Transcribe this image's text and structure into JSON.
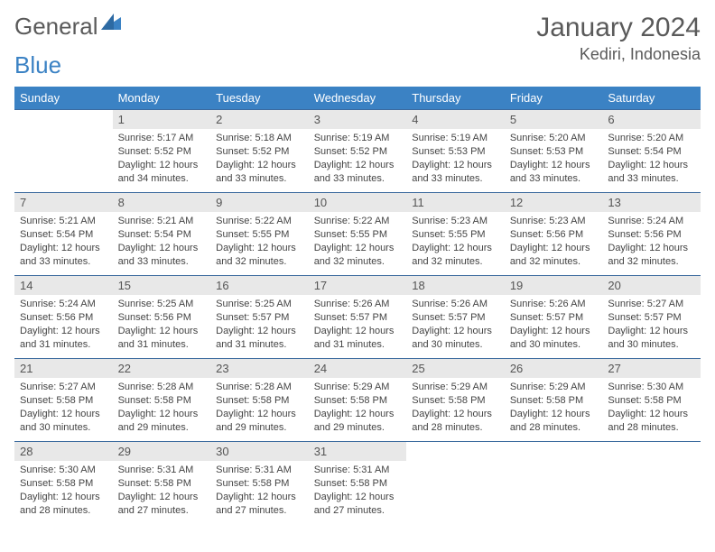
{
  "logo": {
    "text1": "General",
    "text2": "Blue"
  },
  "header": {
    "monthTitle": "January 2024",
    "location": "Kediri, Indonesia"
  },
  "colors": {
    "accent": "#3b82c4",
    "headerRow": "#3b82c4",
    "dayNumBg": "#e8e8e8",
    "rowBorder": "#3b6a9e",
    "text": "#444444"
  },
  "weekdays": [
    "Sunday",
    "Monday",
    "Tuesday",
    "Wednesday",
    "Thursday",
    "Friday",
    "Saturday"
  ],
  "startOffset": 1,
  "days": [
    {
      "n": 1,
      "sr": "5:17 AM",
      "ss": "5:52 PM",
      "dl": "12 hours and 34 minutes."
    },
    {
      "n": 2,
      "sr": "5:18 AM",
      "ss": "5:52 PM",
      "dl": "12 hours and 33 minutes."
    },
    {
      "n": 3,
      "sr": "5:19 AM",
      "ss": "5:52 PM",
      "dl": "12 hours and 33 minutes."
    },
    {
      "n": 4,
      "sr": "5:19 AM",
      "ss": "5:53 PM",
      "dl": "12 hours and 33 minutes."
    },
    {
      "n": 5,
      "sr": "5:20 AM",
      "ss": "5:53 PM",
      "dl": "12 hours and 33 minutes."
    },
    {
      "n": 6,
      "sr": "5:20 AM",
      "ss": "5:54 PM",
      "dl": "12 hours and 33 minutes."
    },
    {
      "n": 7,
      "sr": "5:21 AM",
      "ss": "5:54 PM",
      "dl": "12 hours and 33 minutes."
    },
    {
      "n": 8,
      "sr": "5:21 AM",
      "ss": "5:54 PM",
      "dl": "12 hours and 33 minutes."
    },
    {
      "n": 9,
      "sr": "5:22 AM",
      "ss": "5:55 PM",
      "dl": "12 hours and 32 minutes."
    },
    {
      "n": 10,
      "sr": "5:22 AM",
      "ss": "5:55 PM",
      "dl": "12 hours and 32 minutes."
    },
    {
      "n": 11,
      "sr": "5:23 AM",
      "ss": "5:55 PM",
      "dl": "12 hours and 32 minutes."
    },
    {
      "n": 12,
      "sr": "5:23 AM",
      "ss": "5:56 PM",
      "dl": "12 hours and 32 minutes."
    },
    {
      "n": 13,
      "sr": "5:24 AM",
      "ss": "5:56 PM",
      "dl": "12 hours and 32 minutes."
    },
    {
      "n": 14,
      "sr": "5:24 AM",
      "ss": "5:56 PM",
      "dl": "12 hours and 31 minutes."
    },
    {
      "n": 15,
      "sr": "5:25 AM",
      "ss": "5:56 PM",
      "dl": "12 hours and 31 minutes."
    },
    {
      "n": 16,
      "sr": "5:25 AM",
      "ss": "5:57 PM",
      "dl": "12 hours and 31 minutes."
    },
    {
      "n": 17,
      "sr": "5:26 AM",
      "ss": "5:57 PM",
      "dl": "12 hours and 31 minutes."
    },
    {
      "n": 18,
      "sr": "5:26 AM",
      "ss": "5:57 PM",
      "dl": "12 hours and 30 minutes."
    },
    {
      "n": 19,
      "sr": "5:26 AM",
      "ss": "5:57 PM",
      "dl": "12 hours and 30 minutes."
    },
    {
      "n": 20,
      "sr": "5:27 AM",
      "ss": "5:57 PM",
      "dl": "12 hours and 30 minutes."
    },
    {
      "n": 21,
      "sr": "5:27 AM",
      "ss": "5:58 PM",
      "dl": "12 hours and 30 minutes."
    },
    {
      "n": 22,
      "sr": "5:28 AM",
      "ss": "5:58 PM",
      "dl": "12 hours and 29 minutes."
    },
    {
      "n": 23,
      "sr": "5:28 AM",
      "ss": "5:58 PM",
      "dl": "12 hours and 29 minutes."
    },
    {
      "n": 24,
      "sr": "5:29 AM",
      "ss": "5:58 PM",
      "dl": "12 hours and 29 minutes."
    },
    {
      "n": 25,
      "sr": "5:29 AM",
      "ss": "5:58 PM",
      "dl": "12 hours and 28 minutes."
    },
    {
      "n": 26,
      "sr": "5:29 AM",
      "ss": "5:58 PM",
      "dl": "12 hours and 28 minutes."
    },
    {
      "n": 27,
      "sr": "5:30 AM",
      "ss": "5:58 PM",
      "dl": "12 hours and 28 minutes."
    },
    {
      "n": 28,
      "sr": "5:30 AM",
      "ss": "5:58 PM",
      "dl": "12 hours and 28 minutes."
    },
    {
      "n": 29,
      "sr": "5:31 AM",
      "ss": "5:58 PM",
      "dl": "12 hours and 27 minutes."
    },
    {
      "n": 30,
      "sr": "5:31 AM",
      "ss": "5:58 PM",
      "dl": "12 hours and 27 minutes."
    },
    {
      "n": 31,
      "sr": "5:31 AM",
      "ss": "5:58 PM",
      "dl": "12 hours and 27 minutes."
    }
  ],
  "labels": {
    "sunrise": "Sunrise: ",
    "sunset": "Sunset: ",
    "daylight": "Daylight: "
  }
}
